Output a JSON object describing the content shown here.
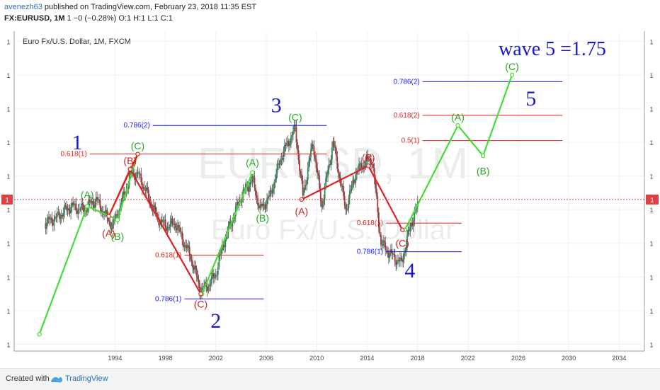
{
  "header": {
    "author": "avenezh63",
    "published": "published on TradingView.com, February 23, 2018 11:35 EST",
    "symbol": "FX:EURUSD, 1M",
    "ohlc": "1 −0 (−0.28%) O:1 H:1 L:1 C:1"
  },
  "footer": {
    "created_with": "Created with",
    "brand": "TradingView"
  },
  "colors": {
    "wave_projection": "#44dd33",
    "corrective_line": "#e02020",
    "fib_red": "#e02020",
    "fib_blue": "#1a1aff",
    "label_green": "#22aa22",
    "label_red": "#cc2020",
    "label_blue": "#1a1acc",
    "price_line": "#e04040"
  },
  "chart_data": {
    "type": "line",
    "title": "Euro Fx/U.S. Dollar, 1M, FXCM",
    "watermark": "EURUSD, 1M",
    "watermark_sub": "Euro Fx/U.S. Dollar",
    "xlim": [
      1986,
      2036
    ],
    "ylim": [
      0.8,
      1.75
    ],
    "x_ticks": [
      1994,
      1998,
      2002,
      2006,
      2010,
      2014,
      2018,
      2022,
      2026,
      2030,
      2034
    ],
    "y_tick_label": "1",
    "y_ticks": [
      0.82,
      0.92,
      1.02,
      1.12,
      1.22,
      1.32,
      1.42,
      1.52,
      1.62,
      1.72
    ],
    "price_marker": {
      "label": "1",
      "y": 1.25
    },
    "series": [
      {
        "role": "impulse-projection",
        "points": [
          [
            1988.0,
            0.85
          ],
          [
            1991.8,
            1.23
          ],
          [
            1994.2,
            1.19
          ],
          [
            1995.8,
            1.385
          ],
          [
            1992.2,
            1.385
          ],
          [
            1992.2,
            1.38
          ],
          [
            1993.8,
            1.38
          ]
        ]
      }
    ],
    "green_path": [
      [
        1988.0,
        0.85
      ],
      [
        1991.8,
        1.23
      ],
      [
        1994.2,
        1.19
      ],
      [
        1995.8,
        1.385
      ]
    ],
    "green_path_2": [
      [
        2000.9,
        0.97
      ],
      [
        2004.9,
        1.33
      ]
    ],
    "green_path_3": [
      [
        2017.0,
        1.16
      ],
      [
        2021.2,
        1.47
      ],
      [
        2023.2,
        1.38
      ],
      [
        2025.5,
        1.62
      ]
    ],
    "red_path_1": [
      [
        1995.8,
        1.385
      ],
      [
        1993.5,
        1.2
      ],
      [
        1995.2,
        1.34
      ],
      [
        2000.8,
        0.97
      ]
    ],
    "red_path_2": [
      [
        2008.8,
        1.25
      ],
      [
        2014.1,
        1.35
      ],
      [
        2016.8,
        1.16
      ]
    ],
    "price_anchors": [
      [
        1988.5,
        1.18
      ],
      [
        1989.5,
        1.2
      ],
      [
        1990.5,
        1.23
      ],
      [
        1991.5,
        1.22
      ],
      [
        1992.5,
        1.25
      ],
      [
        1993.3,
        1.2
      ],
      [
        1993.8,
        1.17
      ],
      [
        1994.5,
        1.24
      ],
      [
        1995.3,
        1.33
      ],
      [
        1995.9,
        1.32
      ],
      [
        1996.5,
        1.27
      ],
      [
        1997.3,
        1.2
      ],
      [
        1998.0,
        1.17
      ],
      [
        1998.8,
        1.18
      ],
      [
        1999.5,
        1.12
      ],
      [
        2000.0,
        1.08
      ],
      [
        2000.8,
        0.98
      ],
      [
        2001.5,
        1.0
      ],
      [
        2002.0,
        1.03
      ],
      [
        2002.6,
        1.12
      ],
      [
        2003.4,
        1.2
      ],
      [
        2004.0,
        1.26
      ],
      [
        2004.9,
        1.31
      ],
      [
        2005.5,
        1.22
      ],
      [
        2006.3,
        1.26
      ],
      [
        2007.2,
        1.38
      ],
      [
        2008.3,
        1.46
      ],
      [
        2008.9,
        1.26
      ],
      [
        2009.7,
        1.42
      ],
      [
        2010.4,
        1.23
      ],
      [
        2011.3,
        1.42
      ],
      [
        2012.3,
        1.22
      ],
      [
        2013.1,
        1.33
      ],
      [
        2013.8,
        1.36
      ],
      [
        2014.4,
        1.37
      ],
      [
        2015.1,
        1.12
      ],
      [
        2015.8,
        1.09
      ],
      [
        2016.7,
        1.06
      ],
      [
        2017.5,
        1.18
      ],
      [
        2018.1,
        1.24
      ]
    ],
    "fib_levels": [
      {
        "label": "0.786(2)",
        "y": 1.47,
        "x0": 1997.0,
        "x1": 2010.8,
        "color": "blue"
      },
      {
        "label": "0.618(1)",
        "y": 1.385,
        "x0": 1992.0,
        "x1": 2010.8,
        "color": "red"
      },
      {
        "label": "0.618(1)",
        "y": 1.085,
        "x0": 1999.5,
        "x1": 2005.8,
        "color": "red"
      },
      {
        "label": "0.786(1)",
        "y": 0.955,
        "x0": 1999.5,
        "x1": 2005.8,
        "color": "blue"
      },
      {
        "label": "0.786(2)",
        "y": 1.6,
        "x0": 2018.4,
        "x1": 2029.5,
        "color": "blue"
      },
      {
        "label": "0.618(2)",
        "y": 1.5,
        "x0": 2018.4,
        "x1": 2029.5,
        "color": "red"
      },
      {
        "label": "0.5(1)",
        "y": 1.425,
        "x0": 2018.4,
        "x1": 2029.5,
        "color": "red"
      },
      {
        "label": "0.618(1)",
        "y": 1.18,
        "x0": 2015.5,
        "x1": 2021.5,
        "color": "red"
      },
      {
        "label": "0.786(1)",
        "y": 1.095,
        "x0": 2015.5,
        "x1": 2021.5,
        "color": "blue"
      }
    ],
    "annotations": [
      {
        "text": "(A)",
        "x": 1991.8,
        "y": 1.265,
        "color": "green"
      },
      {
        "text": "(B)",
        "x": 1994.2,
        "y": 1.14,
        "color": "green"
      },
      {
        "text": "(C)",
        "x": 1995.8,
        "y": 1.41,
        "color": "green"
      },
      {
        "text": "(B)",
        "x": 1995.2,
        "y": 1.365,
        "color": "red"
      },
      {
        "text": "(A)",
        "x": 1993.5,
        "y": 1.15,
        "color": "red"
      },
      {
        "text": "(C)",
        "x": 2000.8,
        "y": 0.94,
        "color": "red"
      },
      {
        "text": "(A)",
        "x": 2004.9,
        "y": 1.36,
        "color": "green"
      },
      {
        "text": "(B)",
        "x": 2005.7,
        "y": 1.195,
        "color": "green"
      },
      {
        "text": "(C)",
        "x": 2008.3,
        "y": 1.495,
        "color": "green"
      },
      {
        "text": "(A)",
        "x": 2008.8,
        "y": 1.215,
        "color": "red"
      },
      {
        "text": "(B)",
        "x": 2014.1,
        "y": 1.375,
        "color": "red"
      },
      {
        "text": "(C)",
        "x": 2016.8,
        "y": 1.12,
        "color": "red"
      },
      {
        "text": "(A)",
        "x": 2021.2,
        "y": 1.495,
        "color": "green"
      },
      {
        "text": "(B)",
        "x": 2023.2,
        "y": 1.335,
        "color": "green"
      },
      {
        "text": "(C)",
        "x": 2025.5,
        "y": 1.645,
        "color": "green"
      }
    ],
    "wave_labels": [
      {
        "text": "1",
        "x": 1991.0,
        "y": 1.42
      },
      {
        "text": "2",
        "x": 2002.0,
        "y": 0.89
      },
      {
        "text": "3",
        "x": 2006.8,
        "y": 1.53
      },
      {
        "text": "4",
        "x": 2017.4,
        "y": 1.04
      },
      {
        "text": "5",
        "x": 2027.0,
        "y": 1.55
      }
    ],
    "target_text": "wave 5 =1.75"
  }
}
